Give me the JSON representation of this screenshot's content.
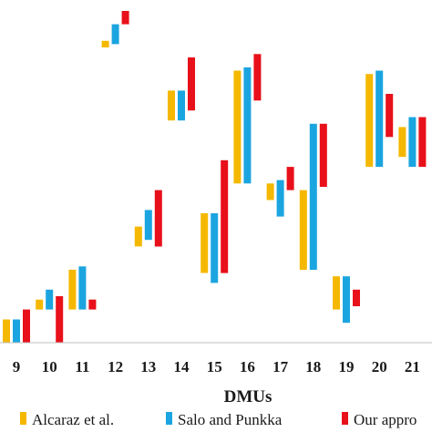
{
  "chart_data": {
    "type": "bar",
    "subtype": "floating-range",
    "categories": [
      "9",
      "10",
      "11",
      "12",
      "13",
      "14",
      "15",
      "16",
      "17",
      "18",
      "19",
      "20",
      "21"
    ],
    "xlabel": "DMUs",
    "ylabel": "",
    "ylim": [
      0,
      1
    ],
    "grid": false,
    "legend_position": "bottom",
    "series": [
      {
        "name": "Alcaraz et al.",
        "color": "#F5B800",
        "ranges": [
          [
            0.0,
            0.07
          ],
          [
            0.1,
            0.13
          ],
          [
            0.1,
            0.22
          ],
          [
            0.89,
            0.91
          ],
          [
            0.29,
            0.35
          ],
          [
            0.67,
            0.76
          ],
          [
            0.21,
            0.39
          ],
          [
            0.48,
            0.82
          ],
          [
            0.43,
            0.48
          ],
          [
            0.22,
            0.46
          ],
          [
            0.1,
            0.2
          ],
          [
            0.53,
            0.81
          ],
          [
            0.56,
            0.65
          ]
        ]
      },
      {
        "name": "Salo and Punkka",
        "color": "#1BA5E0",
        "ranges": [
          [
            0.0,
            0.07
          ],
          [
            0.1,
            0.16
          ],
          [
            0.1,
            0.23
          ],
          [
            0.9,
            0.96
          ],
          [
            0.31,
            0.4
          ],
          [
            0.67,
            0.76
          ],
          [
            0.18,
            0.39
          ],
          [
            0.48,
            0.83
          ],
          [
            0.38,
            0.49
          ],
          [
            0.22,
            0.66
          ],
          [
            0.06,
            0.2
          ],
          [
            0.53,
            0.82
          ],
          [
            0.53,
            0.68
          ]
        ]
      },
      {
        "name": "Our approach",
        "color": "#E8101A",
        "ranges": [
          [
            0.0,
            0.1
          ],
          [
            0.0,
            0.14
          ],
          [
            0.1,
            0.13
          ],
          [
            0.96,
            1.0
          ],
          [
            0.29,
            0.46
          ],
          [
            0.7,
            0.86
          ],
          [
            0.21,
            0.55
          ],
          [
            0.73,
            0.87
          ],
          [
            0.46,
            0.53
          ],
          [
            0.47,
            0.66
          ],
          [
            0.11,
            0.16
          ],
          [
            0.62,
            0.75
          ],
          [
            0.53,
            0.68
          ]
        ]
      }
    ]
  },
  "legend": {
    "items": [
      {
        "label": "Alcaraz et al.",
        "color": "#F5B800"
      },
      {
        "label": "Salo and Punkka",
        "color": "#1BA5E0"
      },
      {
        "label": "Our appro",
        "color": "#E8101A"
      }
    ]
  }
}
